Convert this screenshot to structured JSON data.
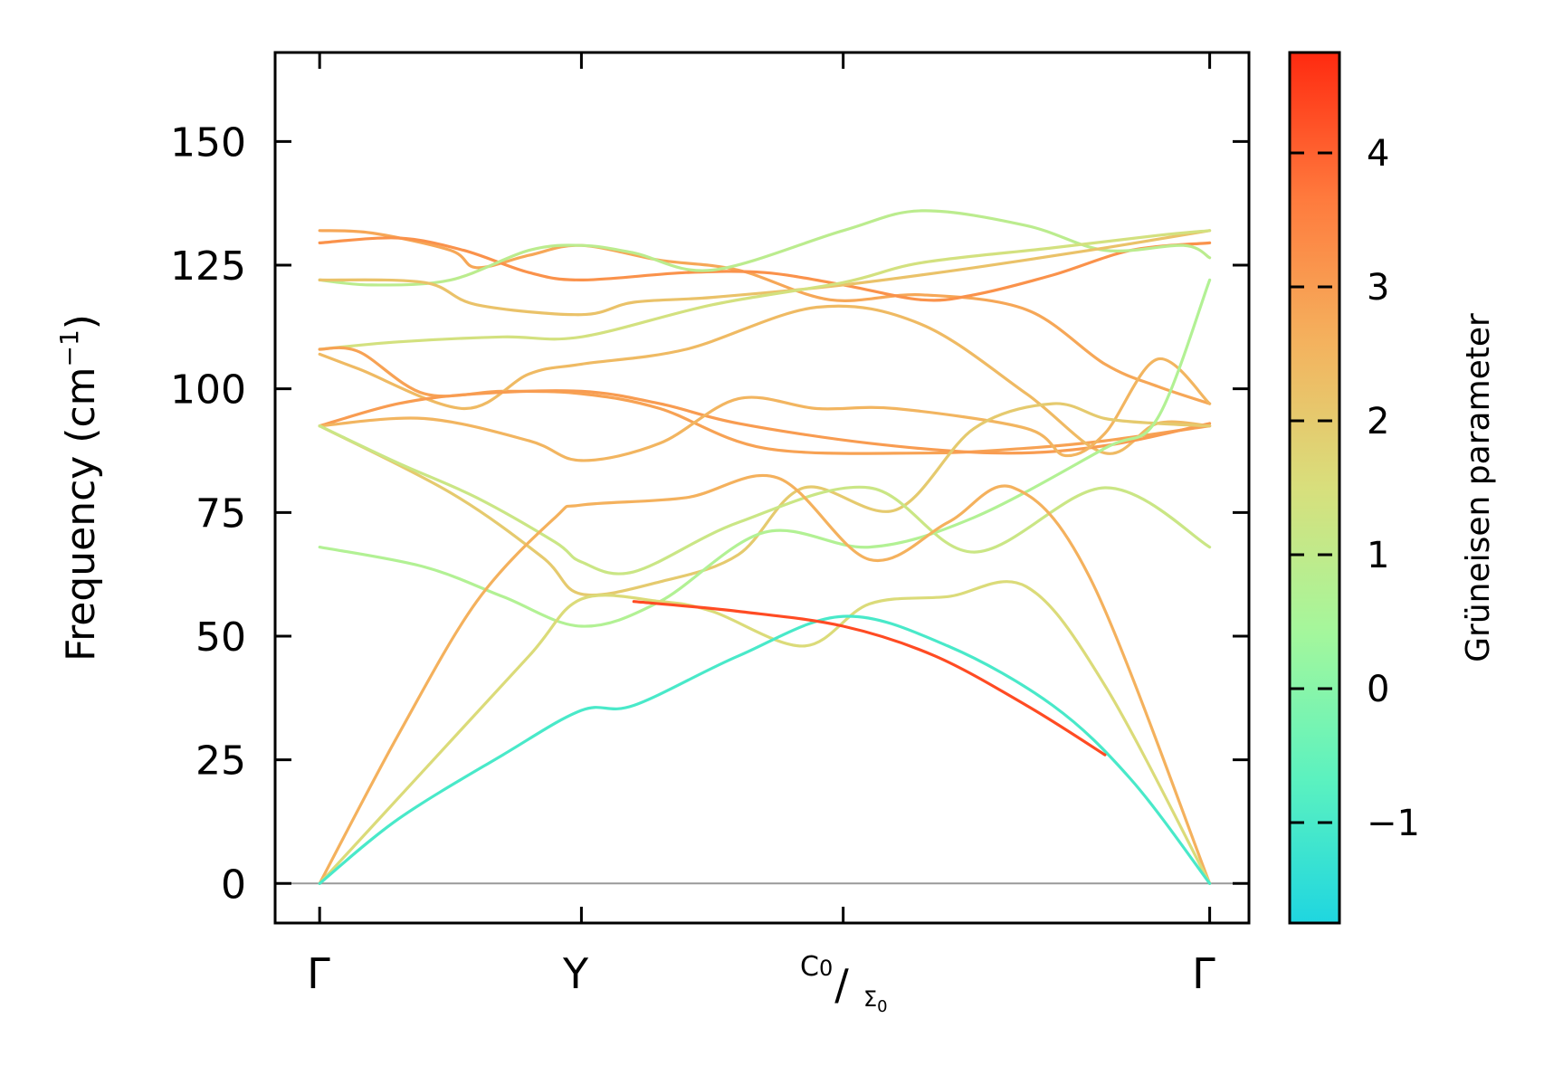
{
  "chart_data": {
    "type": "line",
    "ylabel": "Frequency (cm",
    "ylabel_unit_sup": "−1",
    "ylabel_close": ")",
    "ylim": [
      -8,
      168
    ],
    "yticks": [
      0,
      25,
      50,
      75,
      100,
      125,
      150
    ],
    "ytick_labels": [
      "0",
      "25",
      "50",
      "75",
      "100",
      "125",
      "150"
    ],
    "xlim": [
      -0.17,
      3.55
    ],
    "kpoints": [
      {
        "x": 0,
        "label": "Γ"
      },
      {
        "x": 1,
        "label": "Y"
      },
      {
        "x": 2,
        "label_top": "C",
        "label_top_sub": "0",
        "slash": "/",
        "label_bottom": "Σ",
        "label_bottom_sub": "0"
      },
      {
        "x": 3.4,
        "label": "Γ"
      }
    ],
    "zero_line": {
      "y": 0,
      "color": "#999999"
    },
    "colorbar": {
      "label": "Grüneisen parameter",
      "range": [
        -1.75,
        4.75
      ],
      "ticks": [
        -1,
        0,
        1,
        2,
        3,
        4
      ],
      "tick_labels": [
        "−1",
        "0",
        "1",
        "2",
        "3",
        "4"
      ],
      "colormap": "rainbow",
      "stops": [
        "#1fd6e0",
        "#5cf2bf",
        "#a4f79c",
        "#d8df7c",
        "#f4b25e",
        "#ff7a3d",
        "#ff2a10"
      ]
    },
    "series": [
      {
        "gamma": 2.8,
        "points": [
          [
            0,
            132
          ],
          [
            0.2,
            131.5
          ],
          [
            0.5,
            128
          ],
          [
            0.6,
            124.5
          ],
          [
            0.8,
            127
          ],
          [
            1,
            129
          ],
          [
            1.3,
            126
          ],
          [
            1.6,
            124
          ],
          [
            1.95,
            118
          ],
          [
            2.3,
            119
          ],
          [
            2.7,
            116
          ],
          [
            3.0,
            105
          ],
          [
            3.2,
            100.5
          ],
          [
            3.4,
            97
          ]
        ]
      },
      {
        "gamma": 3.2,
        "points": [
          [
            0,
            129.5
          ],
          [
            0.3,
            130.5
          ],
          [
            0.55,
            128
          ],
          [
            0.8,
            123.5
          ],
          [
            1,
            122
          ],
          [
            1.4,
            123.5
          ],
          [
            1.7,
            123.5
          ],
          [
            2,
            121
          ],
          [
            2.3,
            118
          ],
          [
            2.5,
            119
          ],
          [
            2.8,
            123
          ],
          [
            3.1,
            128
          ],
          [
            3.4,
            129.5
          ]
        ]
      },
      {
        "gamma": 0.9,
        "points": [
          [
            0,
            122
          ],
          [
            0.2,
            121
          ],
          [
            0.5,
            122
          ],
          [
            0.8,
            128
          ],
          [
            1,
            129
          ],
          [
            1.2,
            127.5
          ],
          [
            1.5,
            124
          ],
          [
            2,
            132
          ],
          [
            2.3,
            136
          ],
          [
            2.7,
            133
          ],
          [
            3.0,
            128
          ],
          [
            3.3,
            129
          ],
          [
            3.4,
            126.5
          ]
        ]
      },
      {
        "gamma": 2.2,
        "points": [
          [
            0,
            122
          ],
          [
            0.4,
            121.5
          ],
          [
            0.6,
            117
          ],
          [
            1,
            115
          ],
          [
            1.2,
            117.5
          ],
          [
            1.5,
            118.5
          ],
          [
            2,
            121
          ],
          [
            2.5,
            124.5
          ],
          [
            3.0,
            128.5
          ],
          [
            3.4,
            132
          ]
        ]
      },
      {
        "gamma": 1.4,
        "points": [
          [
            0,
            108
          ],
          [
            0.3,
            109.5
          ],
          [
            0.7,
            110.5
          ],
          [
            1,
            110.5
          ],
          [
            1.5,
            117
          ],
          [
            2,
            121.5
          ],
          [
            2.3,
            125.5
          ],
          [
            2.8,
            128.5
          ],
          [
            3.2,
            131
          ],
          [
            3.4,
            132
          ]
        ]
      },
      {
        "gamma": 2.9,
        "points": [
          [
            0,
            108
          ],
          [
            0.15,
            107.5
          ],
          [
            0.4,
            99
          ],
          [
            0.7,
            99.5
          ],
          [
            1,
            99
          ],
          [
            1.3,
            96
          ],
          [
            1.7,
            88
          ],
          [
            2.3,
            87
          ],
          [
            2.7,
            88
          ],
          [
            3.0,
            89.5
          ],
          [
            3.4,
            92.5
          ]
        ]
      },
      {
        "gamma": 2.4,
        "points": [
          [
            0,
            107
          ],
          [
            0.15,
            104
          ],
          [
            0.55,
            96
          ],
          [
            0.8,
            103
          ],
          [
            1,
            105
          ],
          [
            1.4,
            108
          ],
          [
            1.9,
            116.5
          ],
          [
            2.3,
            113
          ],
          [
            2.7,
            99
          ],
          [
            3.0,
            87
          ],
          [
            3.2,
            93
          ],
          [
            3.4,
            92.5
          ]
        ]
      },
      {
        "gamma": 3.0,
        "points": [
          [
            0,
            92.5
          ],
          [
            0.3,
            97
          ],
          [
            0.6,
            99
          ],
          [
            1,
            99.5
          ],
          [
            1.3,
            97
          ],
          [
            1.6,
            93
          ],
          [
            2.1,
            89
          ],
          [
            2.6,
            87
          ],
          [
            3.0,
            88.5
          ],
          [
            3.4,
            93
          ]
        ]
      },
      {
        "gamma": 2.5,
        "points": [
          [
            0,
            92.5
          ],
          [
            0.4,
            94
          ],
          [
            0.8,
            89.5
          ],
          [
            1,
            85.5
          ],
          [
            1.3,
            89
          ],
          [
            1.6,
            98
          ],
          [
            1.9,
            96
          ],
          [
            2.2,
            96
          ],
          [
            2.7,
            92
          ],
          [
            2.85,
            86.5
          ],
          [
            3.0,
            91
          ],
          [
            3.2,
            106
          ],
          [
            3.4,
            97
          ]
        ]
      },
      {
        "gamma": 2.0,
        "points": [
          [
            0,
            92.5
          ],
          [
            0.5,
            79
          ],
          [
            0.85,
            66
          ],
          [
            1,
            58.5
          ],
          [
            1.3,
            61
          ],
          [
            1.6,
            66.5
          ],
          [
            1.85,
            80
          ],
          [
            2.2,
            75.5
          ],
          [
            2.5,
            92
          ],
          [
            2.8,
            97
          ],
          [
            3.0,
            94
          ],
          [
            3.2,
            93
          ],
          [
            3.4,
            92.5
          ]
        ]
      },
      {
        "gamma": 1.2,
        "points": [
          [
            0,
            92.5
          ],
          [
            0.3,
            85
          ],
          [
            0.6,
            78
          ],
          [
            0.9,
            69
          ],
          [
            1,
            65
          ],
          [
            1.2,
            63
          ],
          [
            1.6,
            73
          ],
          [
            2.1,
            80
          ],
          [
            2.5,
            67
          ],
          [
            3.0,
            80
          ],
          [
            3.4,
            68
          ]
        ]
      },
      {
        "gamma": 0.7,
        "points": [
          [
            0,
            68
          ],
          [
            0.4,
            64
          ],
          [
            0.7,
            58
          ],
          [
            1,
            52
          ],
          [
            1.3,
            57
          ],
          [
            1.7,
            71
          ],
          [
            2.1,
            68
          ],
          [
            2.5,
            74
          ],
          [
            3.0,
            88
          ],
          [
            3.2,
            94
          ],
          [
            3.4,
            122
          ]
        ]
      },
      {
        "gamma": 2.6,
        "points": [
          [
            0,
            0
          ],
          [
            0.3,
            30
          ],
          [
            0.6,
            57
          ],
          [
            0.9,
            74
          ],
          [
            1,
            76.5
          ],
          [
            1.4,
            78
          ],
          [
            1.75,
            82
          ],
          [
            2.1,
            65.5
          ],
          [
            2.4,
            73
          ],
          [
            2.65,
            80
          ],
          [
            2.95,
            61
          ],
          [
            3.4,
            0
          ]
        ]
      },
      {
        "gamma": 1.6,
        "points": [
          [
            0,
            0
          ],
          [
            0.4,
            23
          ],
          [
            0.8,
            46
          ],
          [
            1,
            57.5
          ],
          [
            1.3,
            57
          ],
          [
            1.5,
            55
          ],
          [
            1.85,
            48
          ],
          [
            2.1,
            56.5
          ],
          [
            2.4,
            58
          ],
          [
            2.7,
            60
          ],
          [
            3.0,
            40
          ],
          [
            3.4,
            0
          ]
        ]
      },
      {
        "gamma": -1.0,
        "points": [
          [
            0,
            0
          ],
          [
            0.3,
            13
          ],
          [
            0.7,
            26
          ],
          [
            1,
            35
          ],
          [
            1.2,
            36
          ],
          [
            1.6,
            46
          ],
          [
            2.0,
            54
          ],
          [
            2.4,
            48
          ],
          [
            2.8,
            36
          ],
          [
            3.1,
            21
          ],
          [
            3.4,
            0
          ]
        ]
      },
      {
        "gamma": 4.3,
        "points": [
          [
            1.2,
            57
          ],
          [
            1.6,
            55
          ],
          [
            2.0,
            52
          ],
          [
            2.35,
            46
          ],
          [
            2.7,
            36
          ],
          [
            3.0,
            26
          ]
        ]
      }
    ]
  }
}
